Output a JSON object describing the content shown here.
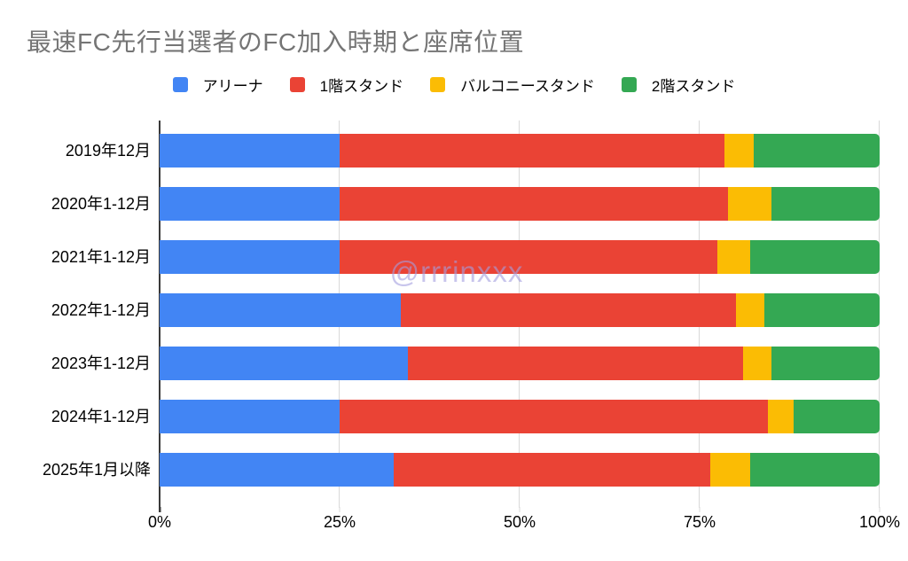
{
  "title": "最速FC先行当選者のFC加入時期と座席位置",
  "watermark": "@rrrinxxx",
  "colors": {
    "blue": "#4285F4",
    "red": "#EA4335",
    "yellow": "#FBBC04",
    "green": "#34A853",
    "title": "#757575",
    "grid": "#D9D9D9",
    "axis": "#3A3A3A"
  },
  "chart_data": {
    "type": "bar",
    "stacked": true,
    "percent_stacked": true,
    "orientation": "horizontal",
    "title": "最速FC先行当選者のFC加入時期と座席位置",
    "categories": [
      "2019年12月",
      "2020年1-12月",
      "2021年1-12月",
      "2022年1-12月",
      "2023年1-12月",
      "2024年1-12月",
      "2025年1月以降"
    ],
    "series": [
      {
        "name": "アリーナ",
        "color": "#4285F4",
        "values": [
          25,
          25,
          25,
          33.5,
          34.5,
          25,
          32.5
        ]
      },
      {
        "name": "1階スタンド",
        "color": "#EA4335",
        "values": [
          53.5,
          54,
          52.5,
          46.5,
          46.5,
          59.5,
          44
        ]
      },
      {
        "name": "バルコニースタンド",
        "color": "#FBBC04",
        "values": [
          4,
          6,
          4.5,
          4,
          4,
          3.5,
          5.5
        ]
      },
      {
        "name": "2階スタンド",
        "color": "#34A853",
        "values": [
          17.5,
          15,
          18,
          16,
          15,
          12,
          18
        ]
      }
    ],
    "xlabel": "",
    "ylabel": "",
    "xlim": [
      0,
      100
    ],
    "x_ticks": [
      "0%",
      "25%",
      "50%",
      "75%",
      "100%"
    ],
    "x_tick_values": [
      0,
      25,
      50,
      75,
      100
    ],
    "grid": true,
    "legend_position": "top"
  }
}
